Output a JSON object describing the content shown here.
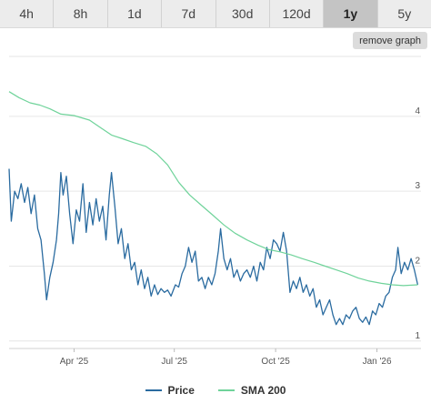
{
  "timeframes": {
    "items": [
      {
        "label": "4h",
        "active": false
      },
      {
        "label": "8h",
        "active": false
      },
      {
        "label": "1d",
        "active": false
      },
      {
        "label": "7d",
        "active": false
      },
      {
        "label": "30d",
        "active": false
      },
      {
        "label": "120d",
        "active": false
      },
      {
        "label": "1y",
        "active": true
      },
      {
        "label": "5y",
        "active": false
      }
    ]
  },
  "actions": {
    "remove_graph_label": "remove graph"
  },
  "colors": {
    "price": "#2a6ba0",
    "sma": "#6fd39a",
    "grid": "#e6e6e6"
  },
  "chart_data": {
    "type": "line",
    "title": "",
    "xlabel": "",
    "ylabel": "",
    "x_range": [
      "2025-02-01",
      "2026-02-10"
    ],
    "ylim": [
      0.9,
      4.8
    ],
    "y_ticks": [
      1,
      2,
      3,
      4
    ],
    "x_ticks": [
      {
        "date": "2025-04-01",
        "label": "Apr '25"
      },
      {
        "date": "2025-07-01",
        "label": "Jul '25"
      },
      {
        "date": "2025-10-01",
        "label": "Oct '25"
      },
      {
        "date": "2026-01-01",
        "label": "Jan '26"
      }
    ],
    "legend": {
      "placement": "bottom-center"
    },
    "grid": true,
    "series": [
      {
        "name": "Price",
        "points": [
          [
            "2025-02-01",
            3.3
          ],
          [
            "2025-02-03",
            2.6
          ],
          [
            "2025-02-06",
            3.0
          ],
          [
            "2025-02-09",
            2.9
          ],
          [
            "2025-02-12",
            3.1
          ],
          [
            "2025-02-15",
            2.85
          ],
          [
            "2025-02-18",
            3.05
          ],
          [
            "2025-02-21",
            2.7
          ],
          [
            "2025-02-24",
            2.95
          ],
          [
            "2025-02-27",
            2.5
          ],
          [
            "2025-03-02",
            2.35
          ],
          [
            "2025-03-05",
            1.9
          ],
          [
            "2025-03-07",
            1.55
          ],
          [
            "2025-03-10",
            1.85
          ],
          [
            "2025-03-13",
            2.05
          ],
          [
            "2025-03-16",
            2.35
          ],
          [
            "2025-03-18",
            2.7
          ],
          [
            "2025-03-20",
            3.25
          ],
          [
            "2025-03-22",
            2.95
          ],
          [
            "2025-03-25",
            3.2
          ],
          [
            "2025-03-28",
            2.7
          ],
          [
            "2025-03-31",
            2.3
          ],
          [
            "2025-04-03",
            2.75
          ],
          [
            "2025-04-06",
            2.6
          ],
          [
            "2025-04-09",
            3.1
          ],
          [
            "2025-04-12",
            2.45
          ],
          [
            "2025-04-15",
            2.85
          ],
          [
            "2025-04-18",
            2.55
          ],
          [
            "2025-04-21",
            2.9
          ],
          [
            "2025-04-24",
            2.6
          ],
          [
            "2025-04-27",
            2.8
          ],
          [
            "2025-04-30",
            2.35
          ],
          [
            "2025-05-03",
            2.95
          ],
          [
            "2025-05-05",
            3.25
          ],
          [
            "2025-05-08",
            2.8
          ],
          [
            "2025-05-11",
            2.3
          ],
          [
            "2025-05-14",
            2.5
          ],
          [
            "2025-05-17",
            2.1
          ],
          [
            "2025-05-20",
            2.3
          ],
          [
            "2025-05-23",
            1.95
          ],
          [
            "2025-05-26",
            2.05
          ],
          [
            "2025-05-29",
            1.75
          ],
          [
            "2025-06-01",
            1.95
          ],
          [
            "2025-06-04",
            1.7
          ],
          [
            "2025-06-07",
            1.85
          ],
          [
            "2025-06-10",
            1.6
          ],
          [
            "2025-06-13",
            1.75
          ],
          [
            "2025-06-16",
            1.62
          ],
          [
            "2025-06-19",
            1.7
          ],
          [
            "2025-06-22",
            1.65
          ],
          [
            "2025-06-25",
            1.68
          ],
          [
            "2025-06-28",
            1.6
          ],
          [
            "2025-07-02",
            1.75
          ],
          [
            "2025-07-05",
            1.72
          ],
          [
            "2025-07-08",
            1.9
          ],
          [
            "2025-07-11",
            2.0
          ],
          [
            "2025-07-14",
            2.25
          ],
          [
            "2025-07-17",
            2.05
          ],
          [
            "2025-07-20",
            2.2
          ],
          [
            "2025-07-23",
            1.8
          ],
          [
            "2025-07-26",
            1.85
          ],
          [
            "2025-07-29",
            1.7
          ],
          [
            "2025-08-01",
            1.85
          ],
          [
            "2025-08-04",
            1.75
          ],
          [
            "2025-08-07",
            1.9
          ],
          [
            "2025-08-10",
            2.2
          ],
          [
            "2025-08-12",
            2.5
          ],
          [
            "2025-08-15",
            2.1
          ],
          [
            "2025-08-18",
            1.95
          ],
          [
            "2025-08-21",
            2.1
          ],
          [
            "2025-08-24",
            1.85
          ],
          [
            "2025-08-27",
            1.95
          ],
          [
            "2025-08-30",
            1.8
          ],
          [
            "2025-09-02",
            1.9
          ],
          [
            "2025-09-05",
            1.95
          ],
          [
            "2025-09-08",
            1.85
          ],
          [
            "2025-09-11",
            2.0
          ],
          [
            "2025-09-14",
            1.8
          ],
          [
            "2025-09-17",
            2.05
          ],
          [
            "2025-09-20",
            1.95
          ],
          [
            "2025-09-23",
            2.25
          ],
          [
            "2025-09-26",
            2.1
          ],
          [
            "2025-09-29",
            2.35
          ],
          [
            "2025-10-02",
            2.3
          ],
          [
            "2025-10-05",
            2.2
          ],
          [
            "2025-10-08",
            2.45
          ],
          [
            "2025-10-11",
            2.2
          ],
          [
            "2025-10-14",
            1.65
          ],
          [
            "2025-10-17",
            1.8
          ],
          [
            "2025-10-20",
            1.7
          ],
          [
            "2025-10-23",
            1.85
          ],
          [
            "2025-10-26",
            1.65
          ],
          [
            "2025-10-29",
            1.75
          ],
          [
            "2025-11-01",
            1.6
          ],
          [
            "2025-11-04",
            1.7
          ],
          [
            "2025-11-07",
            1.45
          ],
          [
            "2025-11-10",
            1.55
          ],
          [
            "2025-11-13",
            1.35
          ],
          [
            "2025-11-16",
            1.45
          ],
          [
            "2025-11-19",
            1.55
          ],
          [
            "2025-11-22",
            1.35
          ],
          [
            "2025-11-25",
            1.22
          ],
          [
            "2025-11-28",
            1.3
          ],
          [
            "2025-12-01",
            1.22
          ],
          [
            "2025-12-04",
            1.35
          ],
          [
            "2025-12-07",
            1.3
          ],
          [
            "2025-12-10",
            1.4
          ],
          [
            "2025-12-13",
            1.45
          ],
          [
            "2025-12-16",
            1.3
          ],
          [
            "2025-12-19",
            1.25
          ],
          [
            "2025-12-22",
            1.32
          ],
          [
            "2025-12-25",
            1.22
          ],
          [
            "2025-12-28",
            1.4
          ],
          [
            "2025-12-31",
            1.35
          ],
          [
            "2026-01-03",
            1.5
          ],
          [
            "2026-01-06",
            1.45
          ],
          [
            "2026-01-09",
            1.6
          ],
          [
            "2026-01-12",
            1.65
          ],
          [
            "2026-01-15",
            1.85
          ],
          [
            "2026-01-18",
            1.95
          ],
          [
            "2026-01-20",
            2.25
          ],
          [
            "2026-01-23",
            1.9
          ],
          [
            "2026-01-26",
            2.05
          ],
          [
            "2026-01-29",
            1.95
          ],
          [
            "2026-02-01",
            2.1
          ],
          [
            "2026-02-04",
            1.95
          ],
          [
            "2026-02-07",
            1.75
          ]
        ]
      },
      {
        "name": "SMA 200",
        "points": [
          [
            "2025-02-01",
            4.33
          ],
          [
            "2025-02-10",
            4.25
          ],
          [
            "2025-02-20",
            4.18
          ],
          [
            "2025-03-01",
            4.15
          ],
          [
            "2025-03-10",
            4.1
          ],
          [
            "2025-03-20",
            4.03
          ],
          [
            "2025-04-01",
            4.01
          ],
          [
            "2025-04-15",
            3.95
          ],
          [
            "2025-04-25",
            3.85
          ],
          [
            "2025-05-05",
            3.75
          ],
          [
            "2025-05-15",
            3.7
          ],
          [
            "2025-05-25",
            3.65
          ],
          [
            "2025-06-05",
            3.6
          ],
          [
            "2025-06-15",
            3.5
          ],
          [
            "2025-06-25",
            3.35
          ],
          [
            "2025-07-05",
            3.12
          ],
          [
            "2025-07-15",
            2.95
          ],
          [
            "2025-07-25",
            2.82
          ],
          [
            "2025-08-05",
            2.68
          ],
          [
            "2025-08-15",
            2.55
          ],
          [
            "2025-08-25",
            2.44
          ],
          [
            "2025-09-05",
            2.35
          ],
          [
            "2025-09-15",
            2.28
          ],
          [
            "2025-09-25",
            2.22
          ],
          [
            "2025-10-05",
            2.19
          ],
          [
            "2025-10-15",
            2.15
          ],
          [
            "2025-10-25",
            2.1
          ],
          [
            "2025-11-05",
            2.05
          ],
          [
            "2025-11-15",
            2.0
          ],
          [
            "2025-11-25",
            1.95
          ],
          [
            "2025-12-05",
            1.9
          ],
          [
            "2025-12-15",
            1.84
          ],
          [
            "2025-12-25",
            1.8
          ],
          [
            "2026-01-05",
            1.77
          ],
          [
            "2026-01-15",
            1.75
          ],
          [
            "2026-01-25",
            1.74
          ],
          [
            "2026-02-07",
            1.75
          ]
        ]
      }
    ]
  }
}
